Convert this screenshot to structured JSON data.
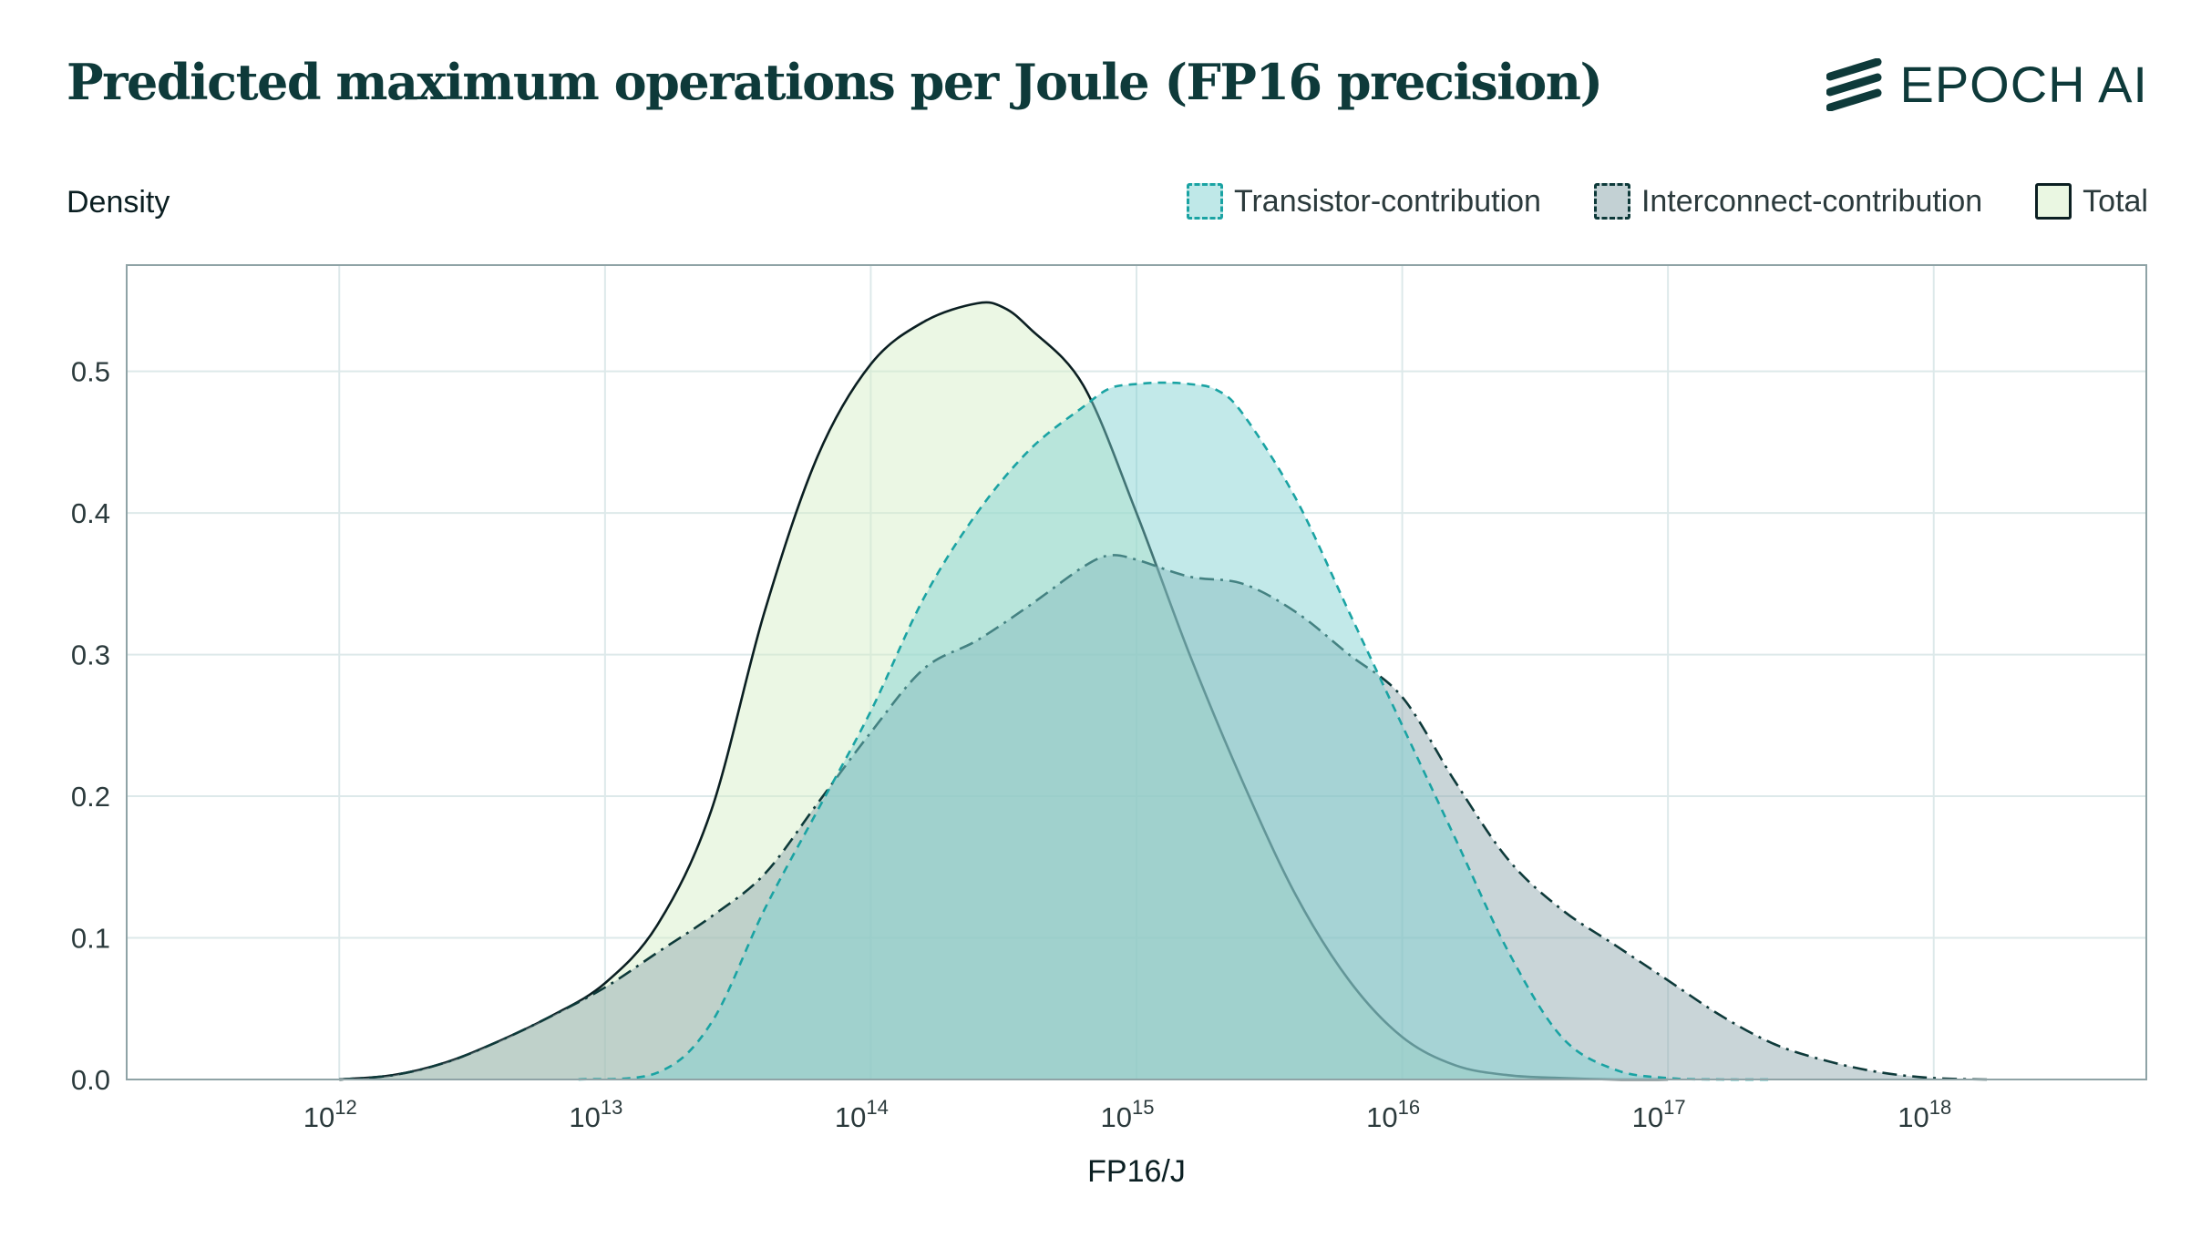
{
  "header": {
    "title": "Predicted maximum operations per Joule (FP16 precision)",
    "brand": "EPOCH AI"
  },
  "chart_data": {
    "type": "area",
    "title": "Predicted maximum operations per Joule (FP16 precision)",
    "xlabel": "FP16/J",
    "ylabel": "Density",
    "xscale": "log",
    "xlim_log10": [
      11.2,
      18.8
    ],
    "ylim": [
      0,
      0.575
    ],
    "grid": true,
    "legend_position": "top-right",
    "x_ticks": [
      {
        "value": 12,
        "base": "10",
        "exp": "12"
      },
      {
        "value": 13,
        "base": "10",
        "exp": "13"
      },
      {
        "value": 14,
        "base": "10",
        "exp": "14"
      },
      {
        "value": 15,
        "base": "10",
        "exp": "15"
      },
      {
        "value": 16,
        "base": "10",
        "exp": "16"
      },
      {
        "value": 17,
        "base": "10",
        "exp": "17"
      },
      {
        "value": 18,
        "base": "10",
        "exp": "18"
      }
    ],
    "y_ticks": [
      "0.0",
      "0.1",
      "0.2",
      "0.3",
      "0.4",
      "0.5"
    ],
    "series": [
      {
        "name": "Transistor-contribution",
        "color": "#1aa3a3",
        "fill": "#7fd0d0",
        "line_style": "dashed",
        "log10_x": [
          12.9,
          13.2,
          13.4,
          13.6,
          13.8,
          14.0,
          14.2,
          14.4,
          14.6,
          14.8,
          14.9,
          15.0,
          15.1,
          15.2,
          15.3,
          15.4,
          15.6,
          15.8,
          16.0,
          16.2,
          16.4,
          16.6,
          16.8,
          17.0,
          17.2,
          17.4
        ],
        "y": [
          0,
          0.005,
          0.04,
          0.12,
          0.19,
          0.26,
          0.34,
          0.4,
          0.445,
          0.475,
          0.488,
          0.491,
          0.492,
          0.491,
          0.487,
          0.47,
          0.41,
          0.33,
          0.25,
          0.17,
          0.09,
          0.03,
          0.007,
          0.001,
          0,
          0
        ]
      },
      {
        "name": "Interconnect-contribution",
        "color": "#0e3a3a",
        "fill": "#8fa8ae",
        "line_style": "dash-dot",
        "log10_x": [
          12.0,
          12.2,
          12.4,
          12.6,
          12.8,
          13.0,
          13.2,
          13.4,
          13.6,
          13.8,
          14.0,
          14.2,
          14.4,
          14.6,
          14.8,
          14.9,
          15.0,
          15.2,
          15.4,
          15.6,
          15.8,
          16.0,
          16.2,
          16.4,
          16.6,
          16.8,
          17.0,
          17.2,
          17.4,
          17.6,
          17.8,
          18.0,
          18.2
        ],
        "y": [
          0,
          0.003,
          0.012,
          0.027,
          0.045,
          0.065,
          0.09,
          0.115,
          0.145,
          0.195,
          0.245,
          0.29,
          0.31,
          0.335,
          0.362,
          0.37,
          0.367,
          0.355,
          0.35,
          0.33,
          0.3,
          0.27,
          0.21,
          0.155,
          0.12,
          0.095,
          0.07,
          0.045,
          0.025,
          0.013,
          0.005,
          0.001,
          0
        ]
      },
      {
        "name": "Total",
        "color": "#0b1f22",
        "fill": "#d6efc6",
        "line_style": "solid",
        "log10_x": [
          12.0,
          12.2,
          12.4,
          12.6,
          12.8,
          13.0,
          13.2,
          13.4,
          13.6,
          13.8,
          14.0,
          14.2,
          14.4,
          14.5,
          14.6,
          14.8,
          15.0,
          15.2,
          15.4,
          15.6,
          15.8,
          16.0,
          16.2,
          16.4,
          16.6,
          16.8,
          17.0
        ],
        "y": [
          0,
          0.003,
          0.012,
          0.027,
          0.045,
          0.068,
          0.11,
          0.19,
          0.33,
          0.44,
          0.505,
          0.535,
          0.548,
          0.545,
          0.53,
          0.49,
          0.4,
          0.3,
          0.21,
          0.13,
          0.07,
          0.03,
          0.01,
          0.003,
          0.001,
          0,
          0
        ]
      }
    ]
  }
}
